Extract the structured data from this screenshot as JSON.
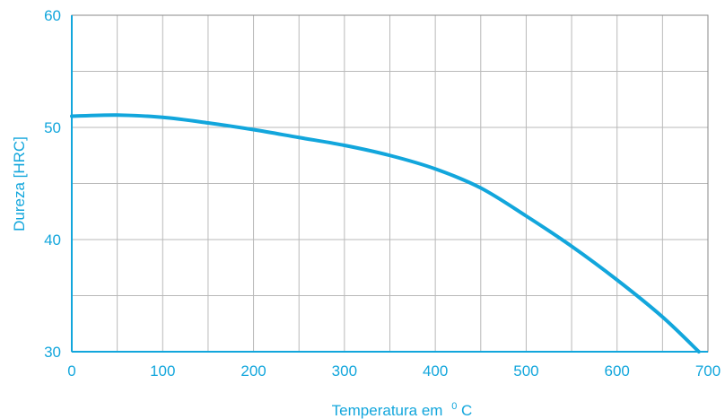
{
  "chart_data": {
    "type": "line",
    "title": "",
    "xlabel": "Temperatura em",
    "xlabel_sup": "0",
    "xlabel_unit": "C",
    "ylabel": "Dureza [HRC]",
    "xlim": [
      0,
      700
    ],
    "ylim": [
      30,
      60
    ],
    "x_ticks": [
      0,
      100,
      200,
      300,
      400,
      500,
      600,
      700
    ],
    "y_ticks": [
      30,
      40,
      50,
      60
    ],
    "x_gridlines_step": 50,
    "y_gridlines_step": 5,
    "grid": true,
    "legend": "none",
    "color": "#12a6dc",
    "series": [
      {
        "x": [
          0,
          50,
          100,
          150,
          200,
          250,
          300,
          350,
          400,
          450,
          500,
          550,
          600,
          650,
          690
        ],
        "y": [
          51.0,
          51.1,
          50.9,
          50.4,
          49.8,
          49.1,
          48.4,
          47.5,
          46.3,
          44.6,
          42.1,
          39.4,
          36.4,
          33.1,
          30.0
        ]
      }
    ]
  }
}
